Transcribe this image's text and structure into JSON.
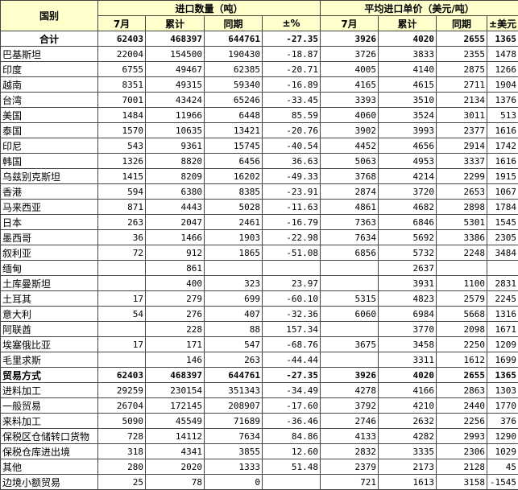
{
  "header": {
    "country": "国别",
    "qty_group": "进口数量（吨）",
    "price_group": "平均进口单价（美元/吨）",
    "sub": [
      "7月",
      "累计",
      "同期",
      "±%",
      "7月",
      "累计",
      "同期",
      "±美元"
    ]
  },
  "rows": [
    {
      "style": "total",
      "cells": [
        "合计",
        "62403",
        "468397",
        "644761",
        "-27.35",
        "3926",
        "4020",
        "2655",
        "1365"
      ]
    },
    {
      "cells": [
        "巴基斯坦",
        "22004",
        "154500",
        "190430",
        "-18.87",
        "3726",
        "3833",
        "2355",
        "1478"
      ]
    },
    {
      "cells": [
        "印度",
        "6755",
        "49467",
        "62385",
        "-20.71",
        "4005",
        "4140",
        "2875",
        "1266"
      ]
    },
    {
      "cells": [
        "越南",
        "8351",
        "49315",
        "59340",
        "-16.89",
        "4165",
        "4615",
        "2711",
        "1904"
      ]
    },
    {
      "cells": [
        "台湾",
        "7001",
        "43424",
        "65246",
        "-33.45",
        "3393",
        "3510",
        "2134",
        "1376"
      ]
    },
    {
      "cells": [
        "美国",
        "1484",
        "11966",
        "6448",
        "85.59",
        "4060",
        "3524",
        "3011",
        "513"
      ]
    },
    {
      "cells": [
        "泰国",
        "1570",
        "10635",
        "13421",
        "-20.76",
        "3902",
        "3993",
        "2377",
        "1616"
      ]
    },
    {
      "cells": [
        "印尼",
        "543",
        "9361",
        "15745",
        "-40.54",
        "4452",
        "4656",
        "2914",
        "1742"
      ]
    },
    {
      "cells": [
        "韩国",
        "1326",
        "8820",
        "6456",
        "36.63",
        "5063",
        "4953",
        "3337",
        "1616"
      ]
    },
    {
      "cells": [
        "乌兹别克斯坦",
        "1415",
        "8209",
        "16202",
        "-49.33",
        "3768",
        "4214",
        "2299",
        "1915"
      ]
    },
    {
      "cells": [
        "香港",
        "594",
        "6380",
        "8385",
        "-23.91",
        "2874",
        "3720",
        "2653",
        "1067"
      ]
    },
    {
      "cells": [
        "马来西亚",
        "871",
        "4443",
        "5028",
        "-11.63",
        "4861",
        "4682",
        "2898",
        "1784"
      ]
    },
    {
      "cells": [
        "日本",
        "263",
        "2047",
        "2461",
        "-16.79",
        "7363",
        "6846",
        "5301",
        "1545"
      ]
    },
    {
      "cells": [
        "墨西哥",
        "36",
        "1466",
        "1903",
        "-22.98",
        "7634",
        "5692",
        "3386",
        "2305"
      ]
    },
    {
      "cells": [
        "叙利亚",
        "72",
        "912",
        "1865",
        "-51.08",
        "6856",
        "5732",
        "2248",
        "3484"
      ]
    },
    {
      "cells": [
        "缅甸",
        "",
        "861",
        "",
        "",
        "",
        "2637",
        "",
        ""
      ]
    },
    {
      "cells": [
        "土库曼斯坦",
        "",
        "400",
        "323",
        "23.97",
        "",
        "3931",
        "1100",
        "2831"
      ]
    },
    {
      "cells": [
        "土耳其",
        "17",
        "279",
        "699",
        "-60.10",
        "5315",
        "4823",
        "2579",
        "2245"
      ]
    },
    {
      "cells": [
        "意大利",
        "54",
        "276",
        "407",
        "-32.36",
        "6060",
        "6984",
        "5668",
        "1316"
      ]
    },
    {
      "cells": [
        "阿联酋",
        "",
        "228",
        "88",
        "157.34",
        "",
        "3770",
        "2098",
        "1671"
      ]
    },
    {
      "cells": [
        "埃塞俄比亚",
        "17",
        "171",
        "547",
        "-68.76",
        "3675",
        "3458",
        "2250",
        "1209"
      ]
    },
    {
      "cells": [
        "毛里求斯",
        "",
        "146",
        "263",
        "-44.44",
        "",
        "3311",
        "1612",
        "1699"
      ]
    },
    {
      "style": "bold",
      "cells": [
        "贸易方式",
        "62403",
        "468397",
        "644761",
        "-27.35",
        "3926",
        "4020",
        "2655",
        "1365"
      ]
    },
    {
      "cells": [
        "进料加工",
        "29259",
        "230154",
        "351343",
        "-34.49",
        "4278",
        "4166",
        "2863",
        "1303"
      ]
    },
    {
      "cells": [
        "一般贸易",
        "26704",
        "172145",
        "208907",
        "-17.60",
        "3792",
        "4210",
        "2440",
        "1770"
      ]
    },
    {
      "cells": [
        "来料加工",
        "5090",
        "45549",
        "71689",
        "-36.46",
        "2746",
        "2632",
        "2256",
        "376"
      ]
    },
    {
      "cells": [
        "保税区仓储转口货物",
        "728",
        "14112",
        "7634",
        "84.86",
        "4133",
        "4282",
        "2993",
        "1290"
      ]
    },
    {
      "cells": [
        "保税仓库进出境",
        "318",
        "4341",
        "3855",
        "12.60",
        "2832",
        "3335",
        "2306",
        "1029"
      ]
    },
    {
      "cells": [
        "其他",
        "280",
        "2020",
        "1333",
        "51.48",
        "2379",
        "2173",
        "2128",
        "45"
      ]
    },
    {
      "cells": [
        "边境小额贸易",
        "25",
        "78",
        "0",
        "",
        "721",
        "1613",
        "3158",
        "-1545"
      ]
    }
  ]
}
